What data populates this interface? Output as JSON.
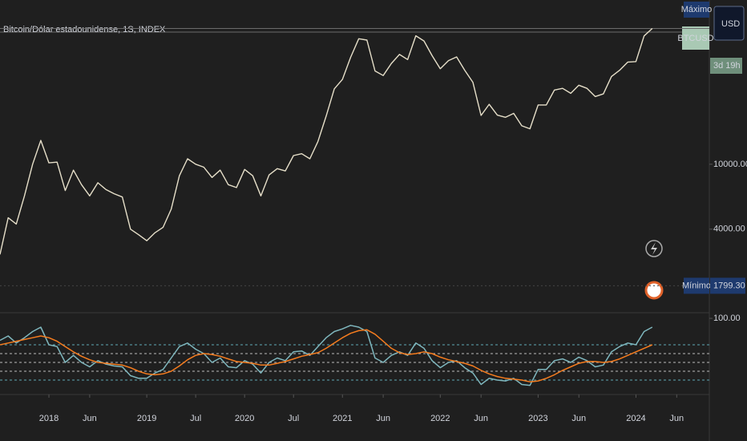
{
  "chart_data": [
    {
      "type": "line",
      "title": "Bitcoin/Dólar estadounidense, 1S, INDEX",
      "log_scale": true,
      "x": [
        "2017-07",
        "2017-08",
        "2017-09",
        "2017-10",
        "2017-11",
        "2017-12",
        "2018-01",
        "2018-02",
        "2018-03",
        "2018-04",
        "2018-05",
        "2018-06",
        "2018-07",
        "2018-08",
        "2018-09",
        "2018-10",
        "2018-11",
        "2018-12",
        "2019-01",
        "2019-02",
        "2019-03",
        "2019-04",
        "2019-05",
        "2019-06",
        "2019-07",
        "2019-08",
        "2019-09",
        "2019-10",
        "2019-11",
        "2019-12",
        "2020-01",
        "2020-02",
        "2020-03",
        "2020-04",
        "2020-05",
        "2020-06",
        "2020-07",
        "2020-08",
        "2020-09",
        "2020-10",
        "2020-11",
        "2020-12",
        "2021-01",
        "2021-02",
        "2021-03",
        "2021-04",
        "2021-05",
        "2021-06",
        "2021-07",
        "2021-08",
        "2021-09",
        "2021-10",
        "2021-11",
        "2021-12",
        "2022-01",
        "2022-02",
        "2022-03",
        "2022-04",
        "2022-05",
        "2022-06",
        "2022-07",
        "2022-08",
        "2022-09",
        "2022-10",
        "2022-11",
        "2022-12",
        "2023-01",
        "2023-02",
        "2023-03",
        "2023-04",
        "2023-05",
        "2023-06",
        "2023-07",
        "2023-08",
        "2023-09",
        "2023-10",
        "2023-11",
        "2023-12",
        "2024-01",
        "2024-02",
        "2024-03"
      ],
      "xlim": [
        "2017-07",
        "2024-10"
      ],
      "xticks": [
        {
          "value": "2018-01",
          "label": "2018"
        },
        {
          "value": "2018-06",
          "label": "Jun"
        },
        {
          "value": "2019-01",
          "label": "2019"
        },
        {
          "value": "2019-07",
          "label": "Jul"
        },
        {
          "value": "2020-01",
          "label": "2020"
        },
        {
          "value": "2020-07",
          "label": "Jul"
        },
        {
          "value": "2021-01",
          "label": "2021"
        },
        {
          "value": "2021-06",
          "label": "Jun"
        },
        {
          "value": "2022-01",
          "label": "2022"
        },
        {
          "value": "2022-06",
          "label": "Jun"
        },
        {
          "value": "2023-01",
          "label": "2023"
        },
        {
          "value": "2023-06",
          "label": "Jun"
        },
        {
          "value": "2024-01",
          "label": "2024"
        },
        {
          "value": "2024-06",
          "label": "Jun"
        }
      ],
      "ylim": [
        1230,
        101600
      ],
      "yticks": [
        {
          "value": 10000,
          "label": "10000.00"
        },
        {
          "value": 4000,
          "label": "4000.00"
        }
      ],
      "series": [
        {
          "name": "BTCUSD",
          "color": "#e6dfc9",
          "values": [
            2800,
            4700,
            4300,
            6400,
            10000,
            14000,
            10200,
            10300,
            6900,
            9200,
            7500,
            6400,
            7700,
            7000,
            6600,
            6300,
            4000,
            3700,
            3400,
            3800,
            4100,
            5300,
            8500,
            10800,
            10000,
            9600,
            8300,
            9200,
            7500,
            7200,
            9300,
            8500,
            6400,
            8600,
            9400,
            9100,
            11300,
            11600,
            10800,
            13800,
            19700,
            29000,
            33100,
            45200,
            58800,
            57700,
            37300,
            35000,
            41500,
            47100,
            43800,
            61300,
            57000,
            46300,
            38500,
            43200,
            45500,
            37700,
            31800,
            19900,
            23300,
            20000,
            19400,
            20500,
            17200,
            16500,
            23100,
            23100,
            28500,
            29200,
            27200,
            30500,
            29200,
            26000,
            27000,
            34500,
            37700,
            42300,
            42600,
            61200,
            68000
          ]
        }
      ],
      "max_label": "Máximo",
      "min_label": "Mínimo",
      "min_price": {
        "value": 1799.3,
        "label": "1799.30"
      },
      "currency": "USD",
      "countdown": "3d 19h"
    },
    {
      "type": "line",
      "x": [
        "2017-07",
        "2017-08",
        "2017-09",
        "2017-10",
        "2017-11",
        "2017-12",
        "2018-01",
        "2018-02",
        "2018-03",
        "2018-04",
        "2018-05",
        "2018-06",
        "2018-07",
        "2018-08",
        "2018-09",
        "2018-10",
        "2018-11",
        "2018-12",
        "2019-01",
        "2019-02",
        "2019-03",
        "2019-04",
        "2019-05",
        "2019-06",
        "2019-07",
        "2019-08",
        "2019-09",
        "2019-10",
        "2019-11",
        "2019-12",
        "2020-01",
        "2020-02",
        "2020-03",
        "2020-04",
        "2020-05",
        "2020-06",
        "2020-07",
        "2020-08",
        "2020-09",
        "2020-10",
        "2020-11",
        "2020-12",
        "2021-01",
        "2021-02",
        "2021-03",
        "2021-04",
        "2021-05",
        "2021-06",
        "2021-07",
        "2021-08",
        "2021-09",
        "2021-10",
        "2021-11",
        "2021-12",
        "2022-01",
        "2022-02",
        "2022-03",
        "2022-04",
        "2022-05",
        "2022-06",
        "2022-07",
        "2022-08",
        "2022-09",
        "2022-10",
        "2022-11",
        "2022-12",
        "2023-01",
        "2023-02",
        "2023-03",
        "2023-04",
        "2023-05",
        "2023-06",
        "2023-07",
        "2023-08",
        "2023-09",
        "2023-10",
        "2023-11",
        "2023-12",
        "2024-01",
        "2024-02",
        "2024-03"
      ],
      "ylim": [
        15.5,
        106.4
      ],
      "yticks": [
        {
          "value": 100,
          "label": "100.00"
        }
      ],
      "levels": [
        70,
        60,
        50,
        40,
        30
      ],
      "series": [
        {
          "color": "#7fb7be",
          "values": [
            75,
            80,
            72,
            78,
            85,
            90,
            70,
            68,
            50,
            58,
            50,
            45,
            52,
            48,
            46,
            45,
            35,
            32,
            32,
            38,
            42,
            55,
            68,
            72,
            65,
            60,
            50,
            55,
            45,
            44,
            52,
            48,
            38,
            50,
            55,
            52,
            62,
            63,
            58,
            68,
            78,
            85,
            88,
            92,
            90,
            85,
            55,
            50,
            58,
            62,
            58,
            72,
            66,
            52,
            44,
            50,
            52,
            44,
            38,
            25,
            32,
            30,
            29,
            32,
            25,
            24,
            42,
            42,
            52,
            54,
            50,
            56,
            52,
            45,
            47,
            62,
            68,
            72,
            70,
            85,
            90
          ]
        },
        {
          "color": "#f57c1f",
          "values": [
            70,
            72,
            74,
            76,
            78,
            80,
            78,
            74,
            68,
            62,
            57,
            53,
            50,
            49,
            48,
            47,
            44,
            40,
            37,
            36,
            37,
            40,
            46,
            53,
            58,
            60,
            59,
            57,
            54,
            51,
            50,
            49,
            47,
            47,
            49,
            51,
            54,
            57,
            59,
            61,
            66,
            72,
            78,
            83,
            86,
            87,
            82,
            74,
            66,
            61,
            59,
            60,
            62,
            60,
            56,
            53,
            51,
            49,
            46,
            41,
            37,
            34,
            32,
            31,
            30,
            28,
            29,
            32,
            36,
            41,
            45,
            49,
            51,
            51,
            50,
            51,
            54,
            58,
            62,
            66,
            70
          ]
        }
      ]
    }
  ]
}
